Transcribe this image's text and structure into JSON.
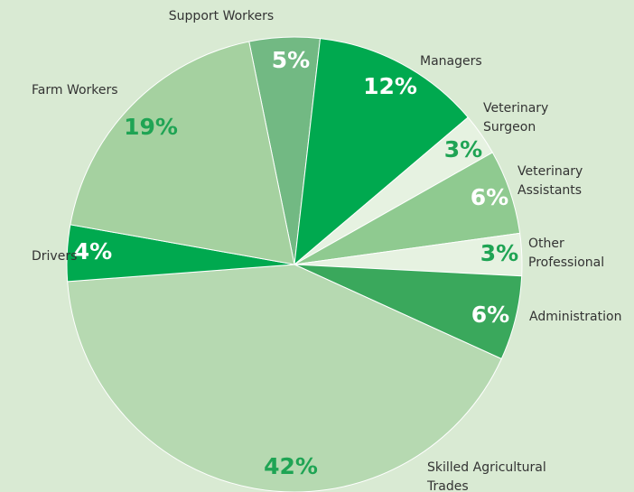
{
  "chart_data": {
    "type": "pie",
    "categories": [
      "Support Workers",
      "Managers",
      "Veterinary Surgeon",
      "Veterinary Assistants",
      "Other Professional",
      "Administration",
      "Skilled Agricultural Trades",
      "Drivers",
      "Farm Workers"
    ],
    "values": [
      5,
      12,
      3,
      6,
      3,
      6,
      42,
      4,
      19
    ],
    "value_labels": [
      "5%",
      "12%",
      "3%",
      "6%",
      "3%",
      "6%",
      "42%",
      "4%",
      "19%"
    ],
    "colors": [
      "#72b983",
      "#00a94f",
      "#e6f2e1",
      "#8fca90",
      "#e6f2e1",
      "#3aa85c",
      "#b6d9b1",
      "#00a94f",
      "#a5d1a0"
    ]
  }
}
